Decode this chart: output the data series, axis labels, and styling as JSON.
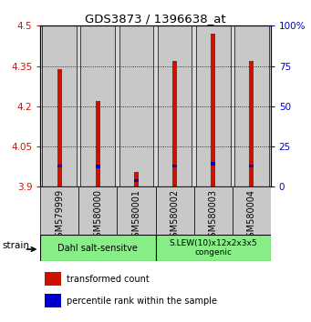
{
  "title": "GDS3873 / 1396638_at",
  "samples": [
    "GSM579999",
    "GSM580000",
    "GSM580001",
    "GSM580002",
    "GSM580003",
    "GSM580004"
  ],
  "red_tops": [
    4.34,
    4.22,
    3.955,
    4.37,
    4.47,
    4.37
  ],
  "blue_tops": [
    3.972,
    3.97,
    3.918,
    3.972,
    3.98,
    3.972
  ],
  "blue_heights": [
    0.012,
    0.012,
    0.01,
    0.012,
    0.012,
    0.012
  ],
  "bar_base": 3.9,
  "ylim_left": [
    3.9,
    4.5
  ],
  "ylim_right": [
    0,
    100
  ],
  "yticks_left": [
    3.9,
    4.05,
    4.2,
    4.35,
    4.5
  ],
  "ytick_labels_left": [
    "3.9",
    "4.05",
    "4.2",
    "4.35",
    "4.5"
  ],
  "yticks_right": [
    0,
    25,
    50,
    75,
    100
  ],
  "ytick_labels_right": [
    "0",
    "25",
    "50",
    "75",
    "100%"
  ],
  "red_color": "#cc1100",
  "blue_color": "#0000cc",
  "bar_width": 0.13,
  "group1_label": "Dahl salt-sensitve",
  "group2_label": "S.LEW(10)x12x2x3x5\ncongenic",
  "group1_color": "#88ee88",
  "group2_color": "#88ee88",
  "strain_label": "strain",
  "legend_red": "transformed count",
  "legend_blue": "percentile rank within the sample",
  "background_color": "#ffffff",
  "plot_bg_color": "#d8d8d8",
  "sample_box_color": "#c8c8c8",
  "grid_color": "#000000",
  "x_positions": [
    0,
    1,
    2,
    3,
    4,
    5
  ]
}
